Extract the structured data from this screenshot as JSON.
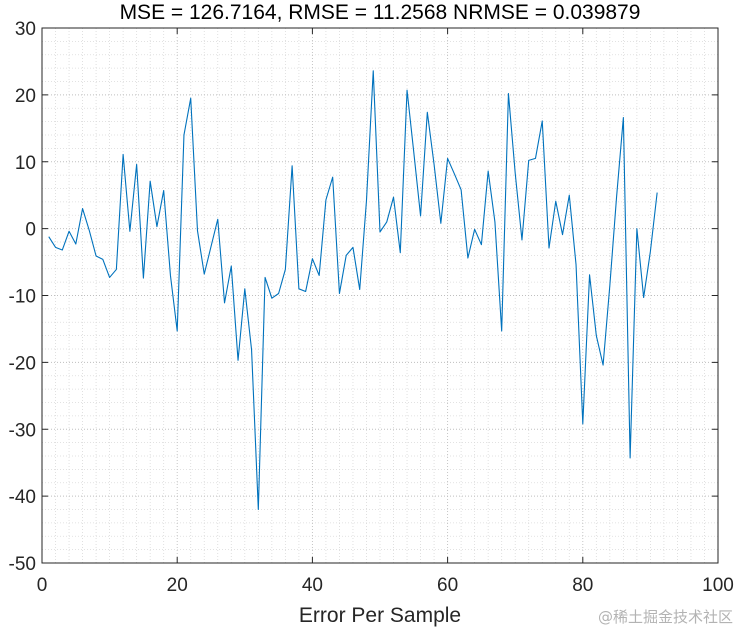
{
  "chart_data": {
    "type": "line",
    "title": "MSE = 126.7164, RMSE = 11.2568 NRMSE = 0.039879",
    "xlabel": "Error Per Sample",
    "ylabel": "",
    "xlim": [
      0,
      100
    ],
    "ylim": [
      -50,
      30
    ],
    "xticks": [
      0,
      20,
      40,
      60,
      80,
      100
    ],
    "yticks": [
      -50,
      -40,
      -30,
      -20,
      -10,
      0,
      10,
      20,
      30
    ],
    "grid": true,
    "minor_grid": true,
    "series": [
      {
        "color": "#0072bd",
        "x": [
          1,
          2,
          3,
          4,
          5,
          6,
          7,
          8,
          9,
          10,
          11,
          12,
          13,
          14,
          15,
          16,
          17,
          18,
          19,
          20,
          21,
          22,
          23,
          24,
          25,
          26,
          27,
          28,
          29,
          30,
          31,
          32,
          33,
          34,
          35,
          36,
          37,
          38,
          39,
          40,
          41,
          42,
          43,
          44,
          45,
          46,
          47,
          48,
          49,
          50,
          51,
          52,
          53,
          54,
          55,
          56,
          57,
          58,
          59,
          60,
          61,
          62,
          63,
          64,
          65,
          66,
          67,
          68,
          69,
          70,
          71,
          72,
          73,
          74,
          75,
          76,
          77,
          78,
          79,
          80,
          81,
          82,
          83,
          84,
          85,
          86,
          87,
          88,
          89,
          90,
          91
        ],
        "values": [
          -1.2,
          -2.8,
          -3.2,
          -0.4,
          -2.3,
          3.0,
          -0.3,
          -4.1,
          -4.6,
          -7.3,
          -6.1,
          11.1,
          -0.4,
          9.6,
          -7.4,
          7.1,
          0.3,
          5.7,
          -7.0,
          -15.3,
          14.0,
          19.5,
          -0.3,
          -6.8,
          -2.7,
          1.4,
          -11.1,
          -5.6,
          -19.7,
          -9.0,
          -18.1,
          -42.0,
          -7.3,
          -10.4,
          -9.7,
          -6.1,
          9.4,
          -9.0,
          -9.4,
          -4.5,
          -7.0,
          4.3,
          7.7,
          -9.7,
          -4.0,
          -2.8,
          -9.1,
          4.2,
          23.6,
          -0.5,
          1.0,
          4.7,
          -3.6,
          20.7,
          11.4,
          1.9,
          17.4,
          9.6,
          0.8,
          10.5,
          8.2,
          5.8,
          -4.4,
          -0.1,
          -2.4,
          8.6,
          1.0,
          -15.3,
          20.2,
          8.3,
          -1.7,
          10.2,
          10.5,
          16.1,
          -2.9,
          4.1,
          -0.9,
          5.0,
          -5.4,
          -29.2,
          -6.9,
          -16.0,
          -20.4,
          -8.5,
          4.8,
          16.6,
          -34.3,
          0.0,
          -10.3,
          -3.4,
          5.4
        ]
      }
    ]
  },
  "watermark": "@稀土掘金技术社区"
}
